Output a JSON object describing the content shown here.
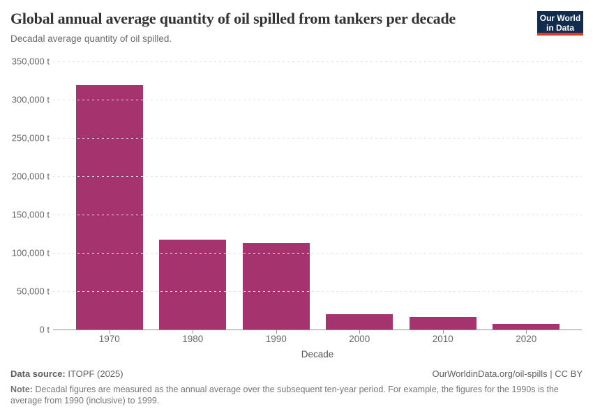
{
  "header": {
    "title": "Global annual average quantity of oil spilled from tankers per decade",
    "subtitle": "Decadal average quantity of oil spilled.",
    "logo": {
      "line1": "Our World",
      "line2": "in Data",
      "bg_color": "#102d4e",
      "strip_color": "#d93b2d"
    }
  },
  "chart_data": {
    "type": "bar",
    "title": "Global annual average quantity of oil spilled from tankers per decade",
    "categories": [
      "1970",
      "1980",
      "1990",
      "2000",
      "2010",
      "2020"
    ],
    "values": [
      319000,
      117500,
      113000,
      19600,
      16300,
      7000
    ],
    "xlabel": "Decade",
    "ylabel": "",
    "unit": "t",
    "ylim": [
      0,
      350000
    ],
    "ytick_step": 50000,
    "ytick_labels": [
      "0 t",
      "50,000 t",
      "100,000 t",
      "150,000 t",
      "200,000 t",
      "250,000 t",
      "300,000 t",
      "350,000 t"
    ],
    "grid": "horizontal-dashed",
    "legend": "none",
    "bar_color": "#a5336d"
  },
  "footer": {
    "datasource_label": "Data source:",
    "datasource_value": " ITOPF (2025)",
    "attribution": "OurWorldinData.org/oil-spills | CC BY",
    "note_label": "Note:",
    "note_text": " Decadal figures are measured as the annual average over the subsequent ten-year period. For example, the figures for the 1990s is the average from 1990 (inclusive) to 1999."
  }
}
